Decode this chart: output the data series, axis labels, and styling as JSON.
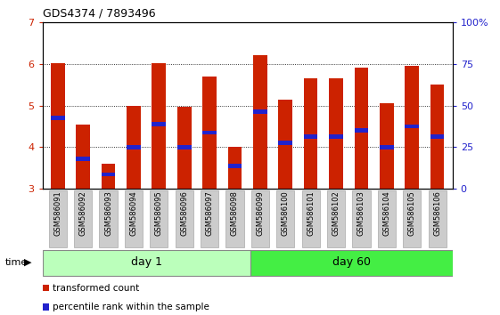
{
  "title": "GDS4374 / 7893496",
  "samples": [
    "GSM586091",
    "GSM586092",
    "GSM586093",
    "GSM586094",
    "GSM586095",
    "GSM586096",
    "GSM586097",
    "GSM586098",
    "GSM586099",
    "GSM586100",
    "GSM586101",
    "GSM586102",
    "GSM586103",
    "GSM586104",
    "GSM586105",
    "GSM586106"
  ],
  "bar_values": [
    6.02,
    4.55,
    3.6,
    5.0,
    6.02,
    4.98,
    5.7,
    4.02,
    6.2,
    5.15,
    5.65,
    5.65,
    5.9,
    5.05,
    5.95,
    5.5
  ],
  "blue_values": [
    4.7,
    3.72,
    3.35,
    4.0,
    4.55,
    4.0,
    4.35,
    3.55,
    4.85,
    4.1,
    4.25,
    4.25,
    4.4,
    4.0,
    4.5,
    4.25
  ],
  "ymin": 3.0,
  "ymax": 7.0,
  "yticks": [
    3,
    4,
    5,
    6,
    7
  ],
  "right_yticks": [
    0,
    25,
    50,
    75,
    100
  ],
  "right_yticklabels": [
    "0",
    "25",
    "50",
    "75",
    "100%"
  ],
  "bar_color": "#cc2200",
  "blue_color": "#2222cc",
  "bar_width": 0.55,
  "day1_count": 8,
  "day1_label": "day 1",
  "day60_label": "day 60",
  "day1_color": "#bbffbb",
  "day60_color": "#44ee44",
  "time_label": "time",
  "legend_red": "transformed count",
  "legend_blue": "percentile rank within the sample",
  "tick_color_left": "#cc2200",
  "tick_color_right": "#2222cc",
  "label_bg_color": "#cccccc",
  "label_border_color": "#aaaaaa"
}
